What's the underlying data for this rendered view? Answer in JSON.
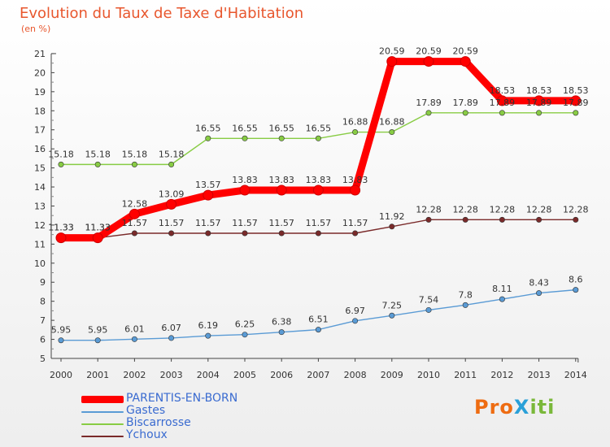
{
  "header": {
    "title": "Evolution du Taux de Taxe d'Habitation",
    "unit": "(en %)"
  },
  "logo": "ProXiti",
  "chart_data": {
    "type": "line",
    "title": "Evolution du Taux de Taxe d'Habitation",
    "ylabel": "(en %)",
    "xlabel": "",
    "ylim": [
      5,
      21
    ],
    "yticks": [
      5,
      6,
      7,
      8,
      9,
      10,
      11,
      12,
      13,
      14,
      15,
      16,
      17,
      18,
      19,
      20,
      21
    ],
    "grid": false,
    "legend": "bottom-left",
    "x": [
      "2000",
      "2001",
      "2002",
      "2003",
      "2004",
      "2005",
      "2006",
      "2007",
      "2008",
      "2009",
      "2010",
      "2011",
      "2012",
      "2013",
      "2014"
    ],
    "series": [
      {
        "name": "PARENTIS-EN-BORN",
        "color": "#ff0000",
        "values": [
          11.33,
          11.33,
          12.58,
          13.09,
          13.57,
          13.83,
          13.83,
          13.83,
          13.83,
          20.59,
          20.59,
          20.59,
          18.53,
          18.53,
          18.53
        ]
      },
      {
        "name": "Gastes",
        "color": "#5a9bd5",
        "values": [
          5.95,
          5.95,
          6.01,
          6.07,
          6.19,
          6.25,
          6.38,
          6.51,
          6.97,
          7.25,
          7.54,
          7.8,
          8.11,
          8.43,
          8.6
        ]
      },
      {
        "name": "Biscarrosse",
        "color": "#88cc44",
        "values": [
          15.18,
          15.18,
          15.18,
          15.18,
          16.55,
          16.55,
          16.55,
          16.55,
          16.88,
          16.88,
          17.89,
          17.89,
          17.89,
          17.89,
          17.89
        ]
      },
      {
        "name": "Ychoux",
        "color": "#7a2a2a",
        "values": [
          11.33,
          11.33,
          11.57,
          11.57,
          11.57,
          11.57,
          11.57,
          11.57,
          11.57,
          11.92,
          12.28,
          12.28,
          12.28,
          12.28,
          12.28
        ]
      }
    ]
  }
}
